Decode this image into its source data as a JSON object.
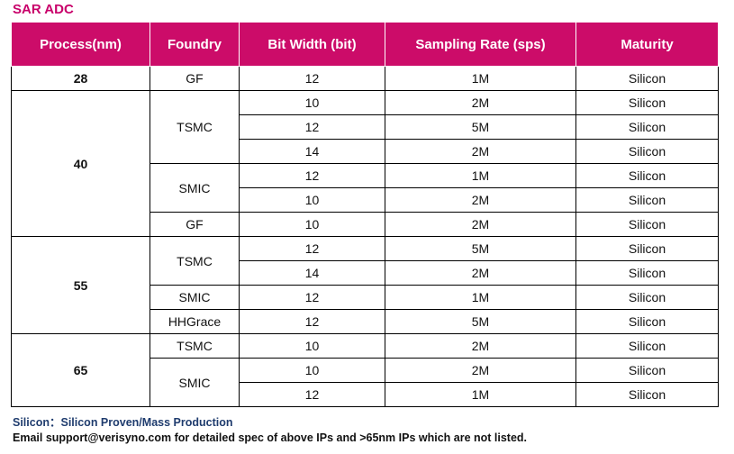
{
  "title": "SAR ADC",
  "headers": [
    "Process(nm)",
    "Foundry",
    "Bit Width (bit)",
    "Sampling Rate (sps)",
    "Maturity"
  ],
  "groups": [
    {
      "process": "28",
      "foundries": [
        {
          "name": "GF",
          "rows": [
            {
              "bits": "12",
              "rate": "1M",
              "maturity": "Silicon"
            }
          ]
        }
      ]
    },
    {
      "process": "40",
      "foundries": [
        {
          "name": "TSMC",
          "rows": [
            {
              "bits": "10",
              "rate": "2M",
              "maturity": "Silicon"
            },
            {
              "bits": "12",
              "rate": "5M",
              "maturity": "Silicon"
            },
            {
              "bits": "14",
              "rate": "2M",
              "maturity": "Silicon"
            }
          ]
        },
        {
          "name": "SMIC",
          "rows": [
            {
              "bits": "12",
              "rate": "1M",
              "maturity": "Silicon"
            },
            {
              "bits": "10",
              "rate": "2M",
              "maturity": "Silicon"
            }
          ]
        },
        {
          "name": "GF",
          "rows": [
            {
              "bits": "10",
              "rate": "2M",
              "maturity": "Silicon"
            }
          ]
        }
      ]
    },
    {
      "process": "55",
      "foundries": [
        {
          "name": "TSMC",
          "rows": [
            {
              "bits": "12",
              "rate": "5M",
              "maturity": "Silicon"
            },
            {
              "bits": "14",
              "rate": "2M",
              "maturity": "Silicon"
            }
          ]
        },
        {
          "name": "SMIC",
          "rows": [
            {
              "bits": "12",
              "rate": "1M",
              "maturity": "Silicon"
            }
          ]
        },
        {
          "name": "HHGrace",
          "rows": [
            {
              "bits": "12",
              "rate": "5M",
              "maturity": "Silicon"
            }
          ]
        }
      ]
    },
    {
      "process": "65",
      "foundries": [
        {
          "name": "TSMC",
          "rows": [
            {
              "bits": "10",
              "rate": "2M",
              "maturity": "Silicon"
            }
          ]
        },
        {
          "name": "SMIC",
          "rows": [
            {
              "bits": "10",
              "rate": "2M",
              "maturity": "Silicon"
            },
            {
              "bits": "12",
              "rate": "1M",
              "maturity": "Silicon"
            }
          ]
        }
      ]
    }
  ],
  "footer": {
    "legend": "Silicon：Silicon Proven/Mass Production",
    "contact": "Email support@verisyno.com for detailed spec of above IPs and >65nm IPs which are not listed."
  }
}
